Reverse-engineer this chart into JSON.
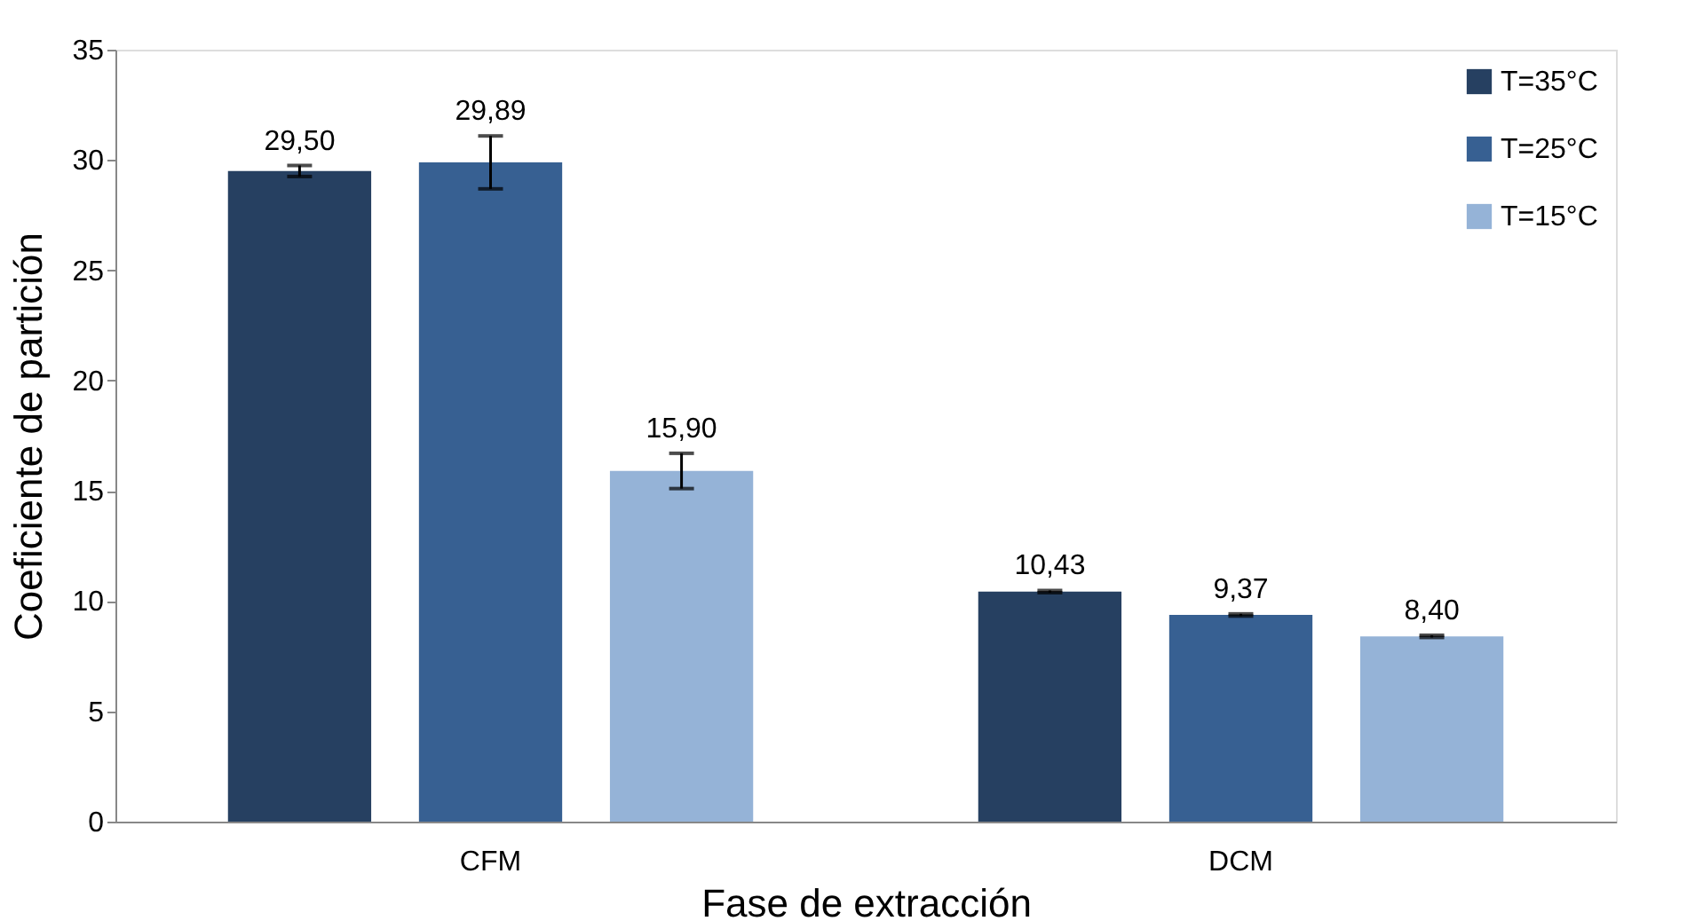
{
  "chart_data": {
    "type": "bar",
    "xlabel": "Fase de extracción",
    "ylabel": "Coeficiente de partición",
    "categories": [
      "CFM",
      "DCM"
    ],
    "series": [
      {
        "name": "T=35°C",
        "color": "#264061",
        "values": [
          29.5,
          10.43
        ],
        "errors": [
          0.25,
          0.05
        ],
        "value_labels": [
          "29,50",
          "10,43"
        ]
      },
      {
        "name": "T=25°C",
        "color": "#376092",
        "values": [
          29.89,
          9.37
        ],
        "errors": [
          1.2,
          0.05
        ],
        "value_labels": [
          "29,89",
          "9,37"
        ]
      },
      {
        "name": "T=15°C",
        "color": "#95b3d7",
        "values": [
          15.9,
          8.4
        ],
        "errors": [
          0.8,
          0.05
        ],
        "value_labels": [
          "15,90",
          "8,40"
        ]
      }
    ],
    "ylim": [
      0,
      35
    ],
    "yticks": [
      0,
      5,
      10,
      15,
      20,
      25,
      30,
      35
    ],
    "grid": false,
    "legend": "top right"
  }
}
